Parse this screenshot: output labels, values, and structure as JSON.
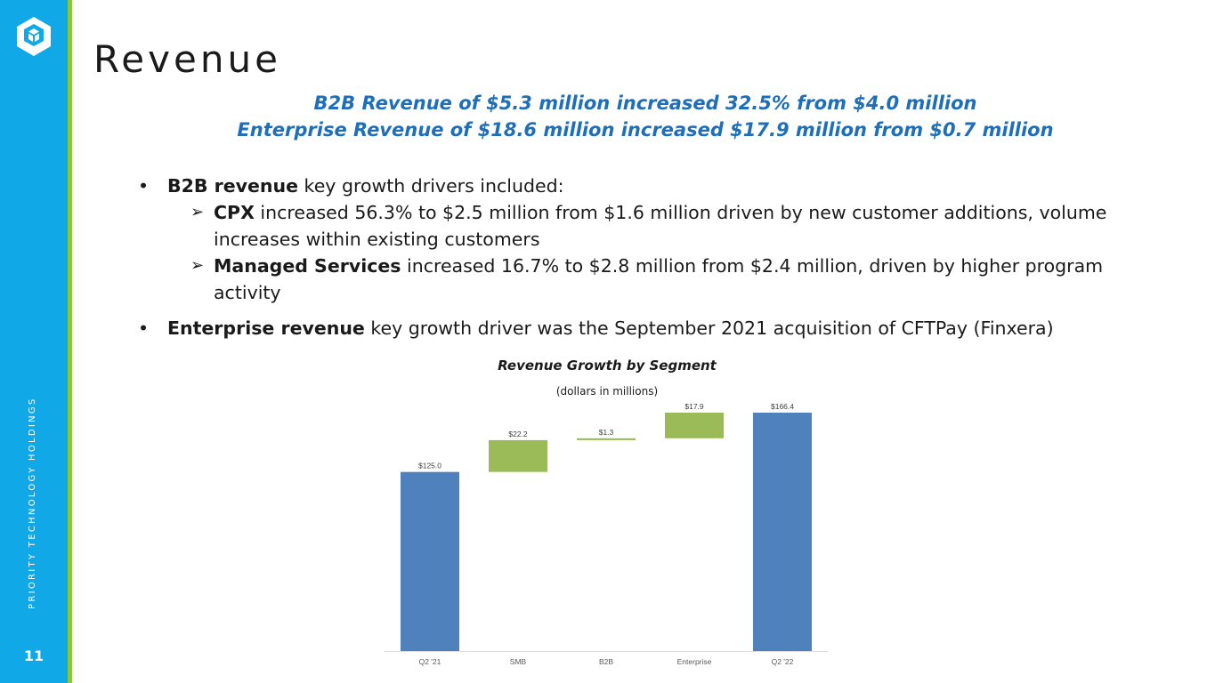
{
  "sidebar": {
    "company": "PRIORITY TECHNOLOGY HOLDINGS",
    "page_number": "11",
    "logo_icon": "priority-cube-logo"
  },
  "slide": {
    "title": "Revenue",
    "headline_1": "B2B Revenue of $5.3 million increased 32.5% from $4.0 million",
    "headline_2": "Enterprise Revenue of $18.6 million increased $17.9 million from $0.7 million"
  },
  "bullets": {
    "b2b": {
      "bold": "B2B revenue",
      "rest": " key growth drivers included:"
    },
    "cpx": {
      "bold": "CPX",
      "rest": " increased 56.3% to $2.5 million from $1.6 million driven by new customer additions, volume increases within existing customers"
    },
    "managed": {
      "bold": "Managed Services",
      "rest": " increased 16.7% to $2.8 million from $2.4 million, driven by higher program activity"
    },
    "enterprise": {
      "bold": "Enterprise revenue",
      "rest": " key growth driver was the September 2021 acquisition of CFTPay (Finxera)"
    }
  },
  "colors": {
    "sidebar": "#10a8e6",
    "accent_green": "#8cc63f",
    "headline_blue": "#1e6fb8",
    "bar_total": "#4f81bd",
    "bar_increase": "#9bbb59"
  },
  "chart_data": {
    "type": "bar",
    "subtype": "waterfall",
    "title": "Revenue Growth by Segment",
    "subtitle": "(dollars in millions)",
    "categories": [
      "Q2 '21",
      "SMB",
      "B2B",
      "Enterprise",
      "Q2 '22"
    ],
    "values": [
      125.0,
      22.2,
      1.3,
      17.9,
      166.4
    ],
    "labels": [
      "$125.0",
      "$22.2",
      "$1.3",
      "$17.9",
      "$166.4"
    ],
    "kinds": [
      "total",
      "increase",
      "increase",
      "increase",
      "total"
    ],
    "ylim": [
      0,
      166.4
    ]
  }
}
